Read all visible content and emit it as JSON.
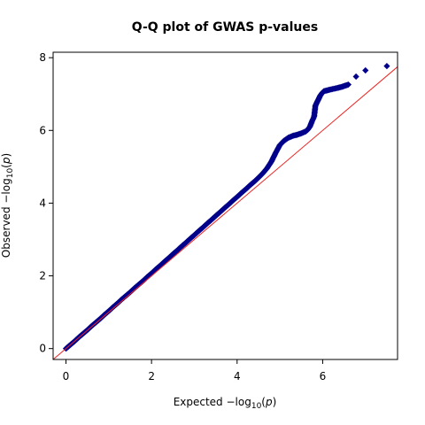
{
  "chart_data": {
    "type": "scatter",
    "title": "Q-Q plot of GWAS p-values",
    "xlabel": {
      "prefix": "Expected  −log",
      "subscript": "10",
      "open": "(",
      "var": "p",
      "close": ")"
    },
    "ylabel": {
      "prefix": "Observed  −log",
      "subscript": "10",
      "open": "(",
      "var": "p",
      "close": ")"
    },
    "xlim": [
      -0.3,
      7.75
    ],
    "ylim": [
      -0.3,
      8.15
    ],
    "x_ticks": [
      0,
      2,
      4,
      6
    ],
    "y_ticks": [
      0,
      2,
      4,
      6,
      8
    ],
    "grid": false,
    "reference_line": {
      "intercept": 0,
      "slope": 1,
      "color": "#ee2222"
    },
    "point_color": "#00008b",
    "points": [
      [
        0.0,
        0.0
      ],
      [
        0.1,
        0.1
      ],
      [
        0.2,
        0.2
      ],
      [
        0.3,
        0.31
      ],
      [
        0.4,
        0.41
      ],
      [
        0.5,
        0.51
      ],
      [
        0.6,
        0.62
      ],
      [
        0.7,
        0.72
      ],
      [
        0.8,
        0.82
      ],
      [
        0.9,
        0.93
      ],
      [
        1.0,
        1.03
      ],
      [
        1.1,
        1.14
      ],
      [
        1.2,
        1.24
      ],
      [
        1.3,
        1.35
      ],
      [
        1.4,
        1.45
      ],
      [
        1.5,
        1.55
      ],
      [
        1.6,
        1.66
      ],
      [
        1.7,
        1.76
      ],
      [
        1.8,
        1.86
      ],
      [
        1.9,
        1.97
      ],
      [
        2.0,
        2.07
      ],
      [
        2.1,
        2.18
      ],
      [
        2.2,
        2.28
      ],
      [
        2.3,
        2.39
      ],
      [
        2.4,
        2.49
      ],
      [
        2.5,
        2.6
      ],
      [
        2.6,
        2.7
      ],
      [
        2.7,
        2.81
      ],
      [
        2.8,
        2.91
      ],
      [
        2.9,
        3.02
      ],
      [
        3.0,
        3.12
      ],
      [
        3.1,
        3.23
      ],
      [
        3.2,
        3.33
      ],
      [
        3.3,
        3.44
      ],
      [
        3.4,
        3.54
      ],
      [
        3.5,
        3.65
      ],
      [
        3.6,
        3.75
      ],
      [
        3.7,
        3.86
      ],
      [
        3.8,
        3.96
      ],
      [
        3.9,
        4.07
      ],
      [
        4.0,
        4.17
      ],
      [
        4.1,
        4.28
      ],
      [
        4.2,
        4.38
      ],
      [
        4.3,
        4.49
      ],
      [
        4.4,
        4.59
      ],
      [
        4.5,
        4.7
      ],
      [
        4.6,
        4.82
      ],
      [
        4.7,
        4.96
      ],
      [
        4.8,
        5.14
      ],
      [
        4.9,
        5.38
      ],
      [
        5.0,
        5.6
      ],
      [
        5.1,
        5.72
      ],
      [
        5.2,
        5.8
      ],
      [
        5.3,
        5.85
      ],
      [
        5.4,
        5.88
      ],
      [
        5.5,
        5.92
      ],
      [
        5.6,
        5.97
      ],
      [
        5.65,
        6.02
      ],
      [
        5.7,
        6.1
      ],
      [
        5.75,
        6.25
      ],
      [
        5.8,
        6.38
      ],
      [
        5.83,
        6.68
      ],
      [
        5.87,
        6.78
      ],
      [
        5.9,
        6.85
      ],
      [
        5.94,
        6.95
      ],
      [
        5.98,
        7.02
      ],
      [
        6.03,
        7.08
      ],
      [
        6.1,
        7.1
      ],
      [
        6.2,
        7.13
      ],
      [
        6.32,
        7.16
      ],
      [
        6.45,
        7.2
      ],
      [
        6.6,
        7.26
      ],
      [
        6.78,
        7.48
      ],
      [
        7.0,
        7.65
      ],
      [
        7.5,
        7.77
      ]
    ]
  }
}
